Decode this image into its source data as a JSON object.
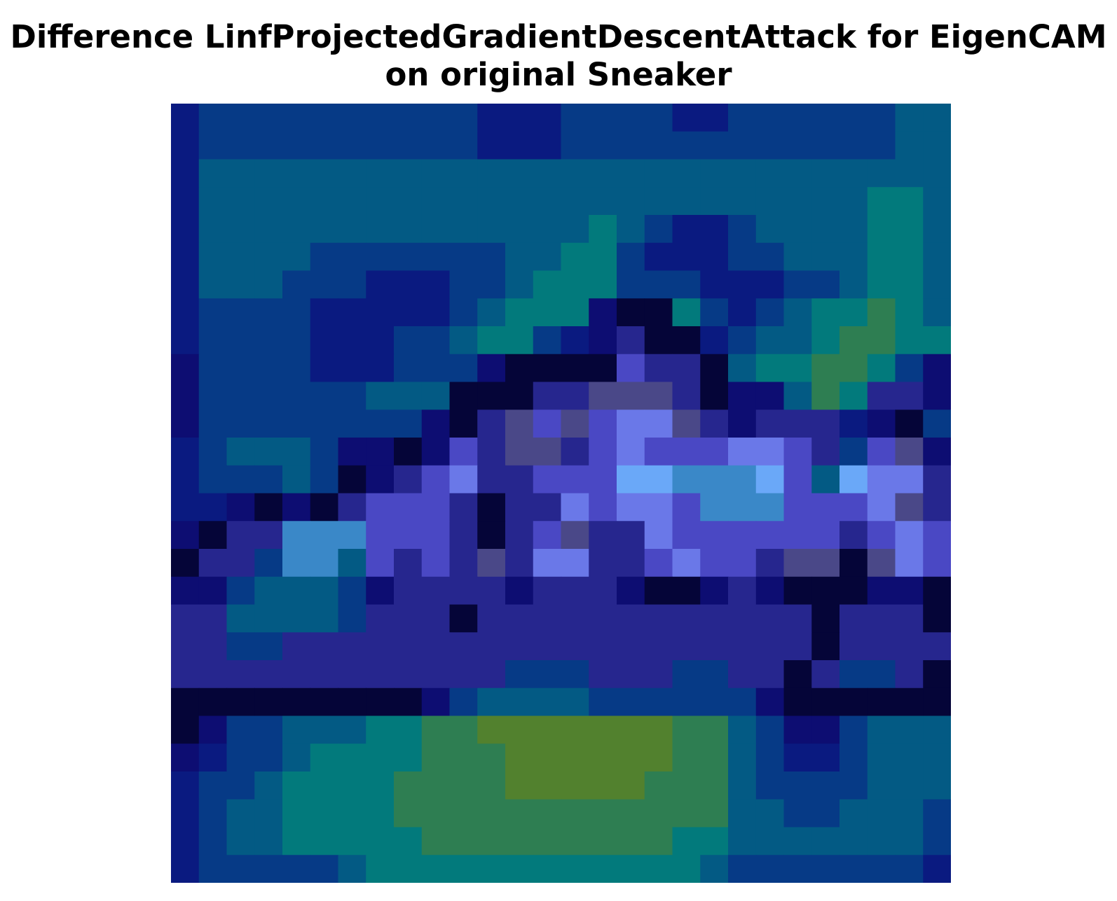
{
  "chart_data": {
    "type": "heatmap",
    "title_lines": [
      "Difference LinfProjectedGradientDescentAttack for EigenCAM",
      "on original Sneaker"
    ],
    "xlabel": "",
    "ylabel": "",
    "axes_visible": false,
    "grid": false,
    "legend": "none",
    "rows": 28,
    "cols": 28,
    "palette": {
      "N": "#0a1a80",
      "B": "#063a86",
      "C": "#035a84",
      "T": "#027a7c",
      "G": "#2e7e52",
      "Y": "#52812e",
      "K": "#050538",
      "D": "#0d0d72",
      "P": "#26268e",
      "V": "#4a48c4",
      "L": "#6a78e8",
      "S": "#6aa8f8",
      "A": "#3a88c8",
      "M": "#4a4888"
    },
    "grid_rows": [
      "NBBBBBBBBBBNNNBBBBNNBBBBBBCC",
      "NBBBBBBBBBBNNNBBBBBBBBBBBBCC",
      "NCCCCCCCCCCCCCCCCCCCCCCCCCCC",
      "NCCCCCCCCCCCCCCCCCCCCCCCCTTC",
      "NCCCCCCCCCCCCCCTCBNNBCCCCTTC",
      "NCCCCBBBBBBBCCTTBNNNBBCCCTTC",
      "NCCCBBBNNNBBCTTTBBBNNNBBCTTC",
      "NBBBBNNNNNBCTTTDKKTBNBCTTGTC",
      "NBBBBNNNBBCTTBNDPKKNBCCTGGTT",
      "DBBBBNNNBBBDKKKKVPPKCTTGGTBD",
      "DBBBBBBCCCKKKPPMMMPKDDCGTPPD",
      "DBBBBBBBBDKPMVMVLLMPDPPPNDKB",
      "NBCCCBDDKDVPMMPVLVVVLLVPBVMD",
      "NBBBCBKDPVLPPVVVSSAAASVCSLLP",
      "NNDKDKPVVVPKPPLVLLVAAAVVVLMP",
      "DKPPAAAVVVPKPVMPPLVVVVVVPVLV",
      "KPPBAACVPVPMPLLPPVLVVPMMKMLV",
      "DDBCCCBDPPPPDPPPDKKDPDKKKDDK",
      "PPCCCCBPPPKPPPPPPPPPPPPKPPPK",
      "PPBBPPPPPPPPPPPPPPPPPPPKPPPP",
      "PPPPPPPPPPPPBBBPPPBBPPKPBBPK",
      "KKKKKKKKKDBCCCCBBBBBBDKKKKKK",
      "KDBBCCCTTGGYYYYYYYGGCBDDBCCC",
      "DNBBCTTTTGGGYYYYYYGGCBNNBCCC",
      "NBBCTTTTGGGGYYYYYGGGCBBBBCCC",
      "NBCCTTTTGGGGGGGGGGGGCCBBCCCB",
      "NBCCTTTTTGGGGGGGGGTTCCCCCCCB",
      "NBBBBBCTTTTTTTTTTTTCBBBBBBBN"
    ]
  }
}
